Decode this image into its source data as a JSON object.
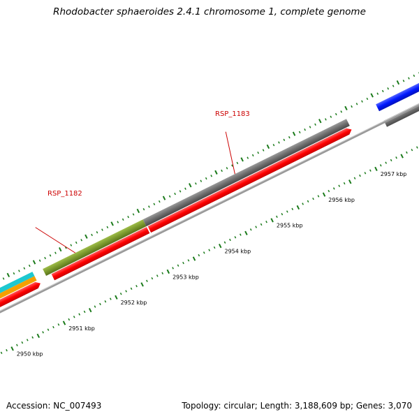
{
  "title": "Rhodobacter sphaeroides 2.4.1 chromosome 1, complete genome",
  "footer": {
    "accession": "Accession: NC_007493",
    "summary": "Topology: circular; Length: 3,188,609 bp; Genes: 3,070"
  },
  "ruler": {
    "labels": [
      "2950 kbp",
      "2951 kbp",
      "2952 kbp",
      "2953 kbp",
      "2954 kbp",
      "2955 kbp",
      "2956 kbp",
      "2957 kbp"
    ]
  },
  "genes": [
    {
      "name": "RSP_1182",
      "color": "#7b9a2e"
    },
    {
      "name": "RSP_1183",
      "color": "#6e6e6e"
    }
  ],
  "colors": {
    "cds": "#ff0000",
    "gene": "#6e6e6e",
    "cyan": "#1ec8d0",
    "orange": "#f5a000",
    "blue": "#0018ff",
    "tick": "#1a7a1a",
    "backbone": "#999999"
  }
}
